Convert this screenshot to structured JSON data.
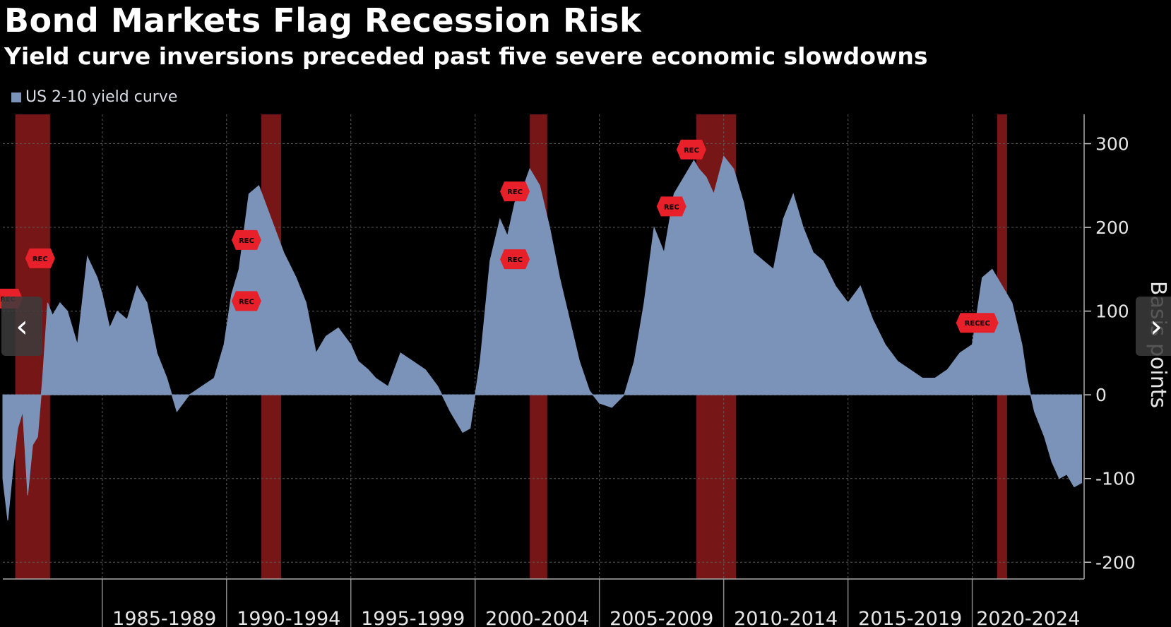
{
  "header": {
    "title": "Bond Markets Flag Recession Risk",
    "subtitle": "Yield curve inversions preceded past five severe economic slowdowns"
  },
  "legend": {
    "label": "US 2-10 yield curve",
    "color": "#7b93b8"
  },
  "nav": {
    "prev_icon": "chevron-left-icon",
    "next_icon": "chevron-right-icon",
    "prev_glyph": "‹",
    "next_glyph": "›"
  },
  "colors": {
    "series": "#7b93b8",
    "recession": "#8b1a1a",
    "rec_marker": "#e8202a",
    "background": "#000000"
  },
  "chart_data": {
    "type": "area",
    "title": "Bond Markets Flag Recession Risk",
    "subtitle": "Yield curve inversions preceded past five severe economic slowdowns",
    "ylabel": "Basis points",
    "xlabel": "",
    "ylim": [
      -220,
      335
    ],
    "xlim": [
      1980.0,
      2023.5
    ],
    "yticks": [
      300,
      200,
      100,
      0,
      -100,
      -200
    ],
    "ytick_labels": [
      "300",
      "200",
      "100",
      "0",
      "-100",
      "-200"
    ],
    "x_period_labels": [
      {
        "label": "1985-1989",
        "from": 1984,
        "to": 1989
      },
      {
        "label": "1990-1994",
        "from": 1989,
        "to": 1994
      },
      {
        "label": "1995-1999",
        "from": 1994,
        "to": 1999
      },
      {
        "label": "2000-2004",
        "from": 1999,
        "to": 2004
      },
      {
        "label": "2005-2009",
        "from": 2004,
        "to": 2009
      },
      {
        "label": "2010-2014",
        "from": 2009,
        "to": 2014
      },
      {
        "label": "2015-2019",
        "from": 2014,
        "to": 2019
      },
      {
        "label": "2020-2024",
        "from": 2019,
        "to": 2024
      }
    ],
    "grid": "dotted",
    "legend_position": "top-left",
    "recessions": [
      {
        "start": 1980.5,
        "end": 1981.9
      },
      {
        "start": 1990.4,
        "end": 1991.2
      },
      {
        "start": 2001.2,
        "end": 2001.9
      },
      {
        "start": 2007.9,
        "end": 2009.5
      },
      {
        "start": 2020.0,
        "end": 2020.4
      }
    ],
    "series": [
      {
        "name": "US 2-10 yield curve",
        "x": [
          1980.0,
          1980.2,
          1980.4,
          1980.6,
          1980.8,
          1981.0,
          1981.2,
          1981.4,
          1981.6,
          1981.8,
          1982.0,
          1982.3,
          1982.6,
          1983.0,
          1983.4,
          1983.8,
          1984.0,
          1984.3,
          1984.6,
          1985.0,
          1985.4,
          1985.8,
          1986.2,
          1986.6,
          1987.0,
          1987.5,
          1988.0,
          1988.5,
          1988.9,
          1989.2,
          1989.5,
          1989.9,
          1990.3,
          1990.8,
          1991.3,
          1991.8,
          1992.2,
          1992.6,
          1993.0,
          1993.5,
          1994.0,
          1994.3,
          1994.7,
          1995.0,
          1995.5,
          1996.0,
          1996.5,
          1997.0,
          1997.5,
          1998.0,
          1998.5,
          1998.8,
          1999.2,
          1999.6,
          2000.0,
          2000.3,
          2000.6,
          2000.9,
          2001.2,
          2001.6,
          2002.0,
          2002.4,
          2002.8,
          2003.2,
          2003.6,
          2004.0,
          2004.5,
          2005.0,
          2005.4,
          2005.8,
          2006.2,
          2006.6,
          2007.0,
          2007.4,
          2007.8,
          2008.0,
          2008.3,
          2008.6,
          2009.0,
          2009.4,
          2009.8,
          2010.2,
          2010.6,
          2011.0,
          2011.4,
          2011.8,
          2012.2,
          2012.6,
          2013.0,
          2013.5,
          2014.0,
          2014.5,
          2015.0,
          2015.5,
          2016.0,
          2016.5,
          2017.0,
          2017.5,
          2018.0,
          2018.5,
          2019.0,
          2019.4,
          2019.8,
          2020.2,
          2020.6,
          2021.0,
          2021.2,
          2021.5,
          2021.9,
          2022.2,
          2022.5,
          2022.8,
          2023.1,
          2023.4
        ],
        "values": [
          -100,
          -150,
          -90,
          -40,
          -20,
          -120,
          -60,
          -50,
          20,
          110,
          95,
          110,
          100,
          60,
          165,
          140,
          120,
          80,
          100,
          90,
          130,
          110,
          50,
          20,
          -20,
          0,
          10,
          20,
          60,
          120,
          150,
          240,
          250,
          210,
          170,
          140,
          110,
          50,
          70,
          80,
          60,
          40,
          30,
          20,
          10,
          50,
          40,
          30,
          10,
          -20,
          -45,
          -40,
          40,
          160,
          210,
          190,
          230,
          245,
          270,
          250,
          200,
          140,
          90,
          40,
          5,
          -10,
          -15,
          0,
          40,
          110,
          200,
          170,
          240,
          260,
          280,
          270,
          260,
          240,
          285,
          270,
          230,
          170,
          160,
          150,
          210,
          240,
          200,
          170,
          160,
          130,
          110,
          130,
          90,
          60,
          40,
          30,
          20,
          20,
          30,
          50,
          60,
          140,
          150,
          130,
          110,
          60,
          20,
          -20,
          -50,
          -80,
          -100,
          -95,
          -110,
          -105
        ]
      }
    ],
    "rec_markers": [
      {
        "label": "REC",
        "x": 1980.2,
        "y": 115
      },
      {
        "label": "REC",
        "x": 1981.5,
        "y": 163
      },
      {
        "label": "REC",
        "x": 1989.8,
        "y": 185
      },
      {
        "label": "REC",
        "x": 1989.8,
        "y": 112
      },
      {
        "label": "REC",
        "x": 2000.6,
        "y": 243
      },
      {
        "label": "REC",
        "x": 2000.6,
        "y": 162
      },
      {
        "label": "REC",
        "x": 2006.9,
        "y": 225
      },
      {
        "label": "REC",
        "x": 2007.7,
        "y": 293
      },
      {
        "label": "RECEC",
        "x": 2019.2,
        "y": 86
      }
    ]
  }
}
